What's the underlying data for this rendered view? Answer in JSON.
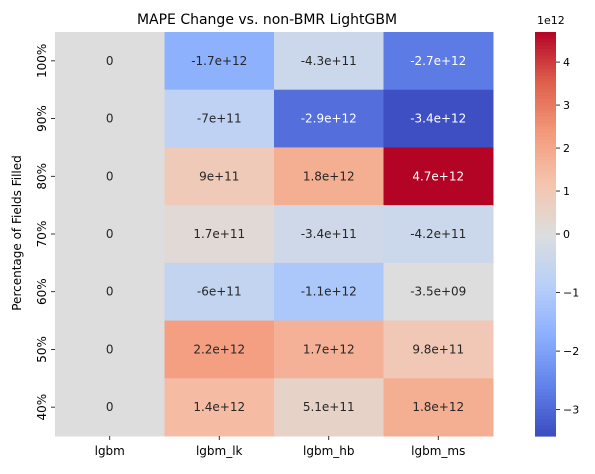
{
  "chart_data": {
    "type": "heatmap",
    "title": "MAPE Change vs. non-BMR LightGBM",
    "xlabel": "",
    "ylabel": "Percentage of Fields Filled",
    "x_categories": [
      "lgbm",
      "lgbm_lk",
      "lgbm_hb",
      "lgbm_ms"
    ],
    "y_categories": [
      "100%",
      "90%",
      "80%",
      "70%",
      "60%",
      "50%",
      "40%"
    ],
    "values": [
      [
        0,
        -1700000000000.0,
        -430000000000.0,
        -2700000000000.0
      ],
      [
        0,
        -700000000000.0,
        -2900000000000.0,
        -3400000000000.0
      ],
      [
        0,
        900000000000.0,
        1800000000000.0,
        4700000000000.0
      ],
      [
        0,
        170000000000.0,
        -340000000000.0,
        -420000000000.0
      ],
      [
        0,
        -600000000000.0,
        -1100000000000.0,
        -3500000000.0
      ],
      [
        0,
        2200000000000.0,
        1700000000000.0,
        980000000000.0
      ],
      [
        0,
        1400000000000.0,
        510000000000.0,
        1800000000000.0
      ]
    ],
    "cell_labels": [
      [
        "0",
        "-1.7e+12",
        "-4.3e+11",
        "-2.7e+12"
      ],
      [
        "0",
        "-7e+11",
        "-2.9e+12",
        "-3.4e+12"
      ],
      [
        "0",
        "9e+11",
        "1.8e+12",
        "4.7e+12"
      ],
      [
        "0",
        "1.7e+11",
        "-3.4e+11",
        "-4.2e+11"
      ],
      [
        "0",
        "-6e+11",
        "-1.1e+12",
        "-3.5e+09"
      ],
      [
        "0",
        "2.2e+12",
        "1.7e+12",
        "9.8e+11"
      ],
      [
        "0",
        "1.4e+12",
        "5.1e+11",
        "1.8e+12"
      ]
    ],
    "colormap": "coolwarm",
    "color_range": [
      -3.45,
      4.7
    ],
    "colorbar": {
      "ticks": [
        -3,
        -2,
        -1,
        0,
        1,
        2,
        3,
        4
      ],
      "tick_labels": [
        "−3",
        "−2",
        "−1",
        "0",
        "1",
        "2",
        "3",
        "4"
      ],
      "offset_label": "1e12"
    }
  }
}
